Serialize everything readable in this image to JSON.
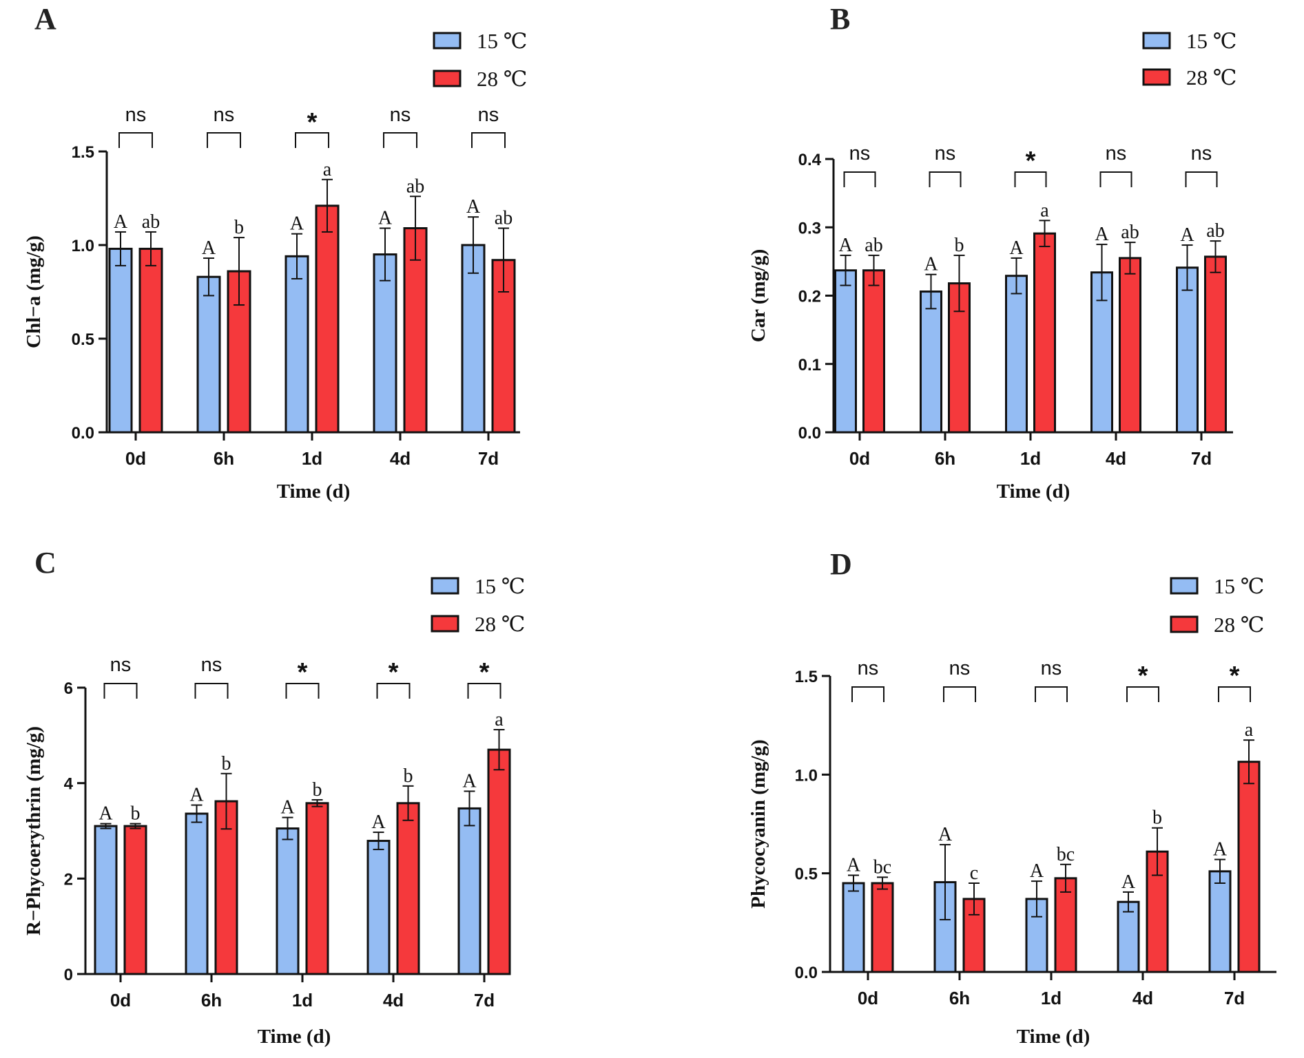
{
  "colors": {
    "s15": "#94bcf3",
    "s28": "#f5393c",
    "ink": "#111111"
  },
  "chart_data": [
    {
      "type": "bar",
      "panel": "A",
      "ylabel": "Chl−a (mg/g)",
      "xlabel": "Time (d)",
      "categories": [
        "0d",
        "6h",
        "1d",
        "4d",
        "7d"
      ],
      "ylim": [
        0,
        1.5
      ],
      "yticks": [
        0.0,
        0.5,
        1.0,
        1.5
      ],
      "yticklabels": [
        "0.0",
        "0.5",
        "1.0",
        "1.5"
      ],
      "legend": [
        "15 ℃",
        "28 ℃"
      ],
      "series": [
        {
          "name": "15 ℃",
          "values": [
            0.98,
            0.83,
            0.94,
            0.95,
            1.0
          ],
          "errors": [
            0.09,
            0.1,
            0.12,
            0.14,
            0.15
          ],
          "letters": [
            "A",
            "A",
            "A",
            "A",
            "A"
          ]
        },
        {
          "name": "28 ℃",
          "values": [
            0.98,
            0.86,
            1.21,
            1.09,
            0.92
          ],
          "errors": [
            0.09,
            0.18,
            0.14,
            0.17,
            0.17
          ],
          "letters": [
            "ab",
            "b",
            "a",
            "ab",
            "ab"
          ]
        }
      ],
      "significance": [
        "ns",
        "ns",
        "*",
        "ns",
        "ns"
      ]
    },
    {
      "type": "bar",
      "panel": "B",
      "ylabel": "Car (mg/g)",
      "xlabel": "Time (d)",
      "categories": [
        "0d",
        "6h",
        "1d",
        "4d",
        "7d"
      ],
      "ylim": [
        0,
        0.4
      ],
      "yticks": [
        0.0,
        0.1,
        0.2,
        0.3,
        0.4
      ],
      "yticklabels": [
        "0.0",
        "0.1",
        "0.2",
        "0.3",
        "0.4"
      ],
      "legend": [
        "15 ℃",
        "28 ℃"
      ],
      "series": [
        {
          "name": "15 ℃",
          "values": [
            0.237,
            0.206,
            0.229,
            0.234,
            0.241
          ],
          "errors": [
            0.022,
            0.025,
            0.026,
            0.041,
            0.033
          ],
          "letters": [
            "A",
            "A",
            "A",
            "A",
            "A"
          ]
        },
        {
          "name": "28 ℃",
          "values": [
            0.237,
            0.218,
            0.291,
            0.255,
            0.257
          ],
          "errors": [
            0.022,
            0.041,
            0.019,
            0.023,
            0.023
          ],
          "letters": [
            "ab",
            "b",
            "a",
            "ab",
            "ab"
          ]
        }
      ],
      "significance": [
        "ns",
        "ns",
        "*",
        "ns",
        "ns"
      ]
    },
    {
      "type": "bar",
      "panel": "C",
      "ylabel": "R−Phycoerythrin (mg/g)",
      "xlabel": "Time (d)",
      "categories": [
        "0d",
        "6h",
        "1d",
        "4d",
        "7d"
      ],
      "ylim": [
        0,
        6
      ],
      "yticks": [
        0,
        2,
        4,
        6
      ],
      "yticklabels": [
        "0",
        "2",
        "4",
        "6"
      ],
      "legend": [
        "15 ℃",
        "28 ℃"
      ],
      "series": [
        {
          "name": "15 ℃",
          "values": [
            3.1,
            3.36,
            3.05,
            2.79,
            3.47
          ],
          "errors": [
            0.05,
            0.18,
            0.23,
            0.18,
            0.36
          ],
          "letters": [
            "A",
            "A",
            "A",
            "A",
            "A"
          ]
        },
        {
          "name": "28 ℃",
          "values": [
            3.1,
            3.62,
            3.58,
            3.58,
            4.7
          ],
          "errors": [
            0.05,
            0.58,
            0.07,
            0.36,
            0.42
          ],
          "letters": [
            "b",
            "b",
            "b",
            "b",
            "a"
          ]
        }
      ],
      "significance": [
        "ns",
        "ns",
        "*",
        "*",
        "*"
      ]
    },
    {
      "type": "bar",
      "panel": "D",
      "ylabel": "Phycocyanin (mg/g)",
      "xlabel": "Time (d)",
      "categories": [
        "0d",
        "6h",
        "1d",
        "4d",
        "7d"
      ],
      "ylim": [
        0,
        1.5
      ],
      "yticks": [
        0.0,
        0.5,
        1.0,
        1.5
      ],
      "yticklabels": [
        "0.0",
        "0.5",
        "1.0",
        "1.5"
      ],
      "legend": [
        "15 ℃",
        "28 ℃"
      ],
      "series": [
        {
          "name": "15 ℃",
          "values": [
            0.45,
            0.455,
            0.37,
            0.355,
            0.51
          ],
          "errors": [
            0.04,
            0.19,
            0.09,
            0.05,
            0.06
          ],
          "letters": [
            "A",
            "A",
            "A",
            "A",
            "A"
          ]
        },
        {
          "name": "28 ℃",
          "values": [
            0.45,
            0.37,
            0.475,
            0.61,
            1.065
          ],
          "errors": [
            0.03,
            0.08,
            0.07,
            0.12,
            0.11
          ],
          "letters": [
            "bc",
            "c",
            "bc",
            "b",
            "a"
          ]
        }
      ],
      "significance": [
        "ns",
        "ns",
        "ns",
        "*",
        "*"
      ]
    }
  ]
}
